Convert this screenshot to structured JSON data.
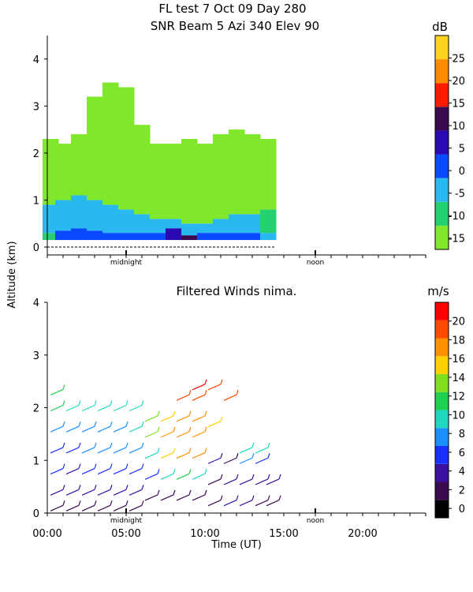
{
  "header": {
    "title_line1": "FL test   7 Oct 09 Day 280",
    "title_line2": "SNR Beam 5 Azi 340 Elev 90"
  },
  "shared_axes": {
    "ylabel": "Altitude (km)",
    "xlabel": "Time (UT)",
    "x_tick_labels": [
      "00:00",
      "05:00",
      "10:00",
      "15:00",
      "20:00"
    ],
    "x_ticks_hours": [
      0,
      5,
      10,
      15,
      20
    ],
    "xlim_hours": [
      0,
      24
    ],
    "marker_labels": [
      "midnight",
      "noon"
    ],
    "marker_hours": [
      5,
      17
    ]
  },
  "colors": {
    "snr_palette": [
      "#7fe82a",
      "#24d070",
      "#2ab8f0",
      "#0a4aff",
      "#2a0ab0",
      "#3a0a50",
      "#ff1a00",
      "#ff8c00",
      "#ffd21f"
    ],
    "wind_palette": [
      "#000000",
      "#3a0a50",
      "#3a10a0",
      "#1a30ff",
      "#1a90ff",
      "#20d8c0",
      "#20d050",
      "#80e020",
      "#ffd000",
      "#ff9000",
      "#ff4a00",
      "#ff0000"
    ]
  },
  "chart_data": [
    {
      "type": "heatmap",
      "title": "SNR Beam 5 Azi 340 Elev 90",
      "xlabel": "",
      "ylabel": "Altitude (km)",
      "ylim": [
        0,
        4.5
      ],
      "y_ticks": [
        0,
        1,
        2,
        3,
        4
      ],
      "colorbar": {
        "unit": "dB",
        "ticks": [
          "-15",
          "-10",
          "-5",
          "0",
          "5",
          "10",
          "15",
          "20",
          "25"
        ],
        "tick_values": [
          -15,
          -10,
          -5,
          0,
          5,
          10,
          15,
          20,
          25
        ],
        "range": [
          -17.5,
          30
        ]
      },
      "time_range_hours": [
        0,
        14.4
      ],
      "columns": [
        {
          "t": 0.2,
          "top": 2.3,
          "bands": [
            [
              0.15,
              0.3,
              1
            ],
            [
              0.3,
              0.9,
              2
            ],
            [
              0.9,
              2.3,
              0
            ]
          ]
        },
        {
          "t": 1.0,
          "top": 2.2,
          "bands": [
            [
              0.15,
              0.35,
              3
            ],
            [
              0.35,
              1.0,
              2
            ],
            [
              1.0,
              2.2,
              0
            ]
          ]
        },
        {
          "t": 2.0,
          "top": 2.4,
          "bands": [
            [
              0.15,
              0.4,
              3
            ],
            [
              0.4,
              1.1,
              2
            ],
            [
              1.1,
              2.4,
              0
            ]
          ]
        },
        {
          "t": 3.0,
          "top": 3.2,
          "bands": [
            [
              0.15,
              0.35,
              3
            ],
            [
              0.35,
              1.0,
              2
            ],
            [
              1.0,
              3.2,
              0
            ]
          ]
        },
        {
          "t": 4.0,
          "top": 3.5,
          "bands": [
            [
              0.15,
              0.3,
              3
            ],
            [
              0.3,
              0.9,
              2
            ],
            [
              0.9,
              3.5,
              0
            ]
          ]
        },
        {
          "t": 5.0,
          "top": 3.4,
          "bands": [
            [
              0.15,
              0.3,
              3
            ],
            [
              0.3,
              0.8,
              2
            ],
            [
              0.8,
              3.4,
              0
            ]
          ]
        },
        {
          "t": 6.0,
          "top": 2.6,
          "bands": [
            [
              0.15,
              0.3,
              3
            ],
            [
              0.3,
              0.7,
              2
            ],
            [
              0.7,
              2.6,
              0
            ]
          ]
        },
        {
          "t": 7.0,
          "top": 2.2,
          "bands": [
            [
              0.15,
              0.3,
              3
            ],
            [
              0.3,
              0.6,
              2
            ],
            [
              0.6,
              2.2,
              0
            ]
          ]
        },
        {
          "t": 8.0,
          "top": 2.2,
          "bands": [
            [
              0.15,
              0.4,
              4
            ],
            [
              0.4,
              0.6,
              2
            ],
            [
              0.6,
              2.2,
              0
            ]
          ]
        },
        {
          "t": 9.0,
          "top": 2.3,
          "bands": [
            [
              0.15,
              0.25,
              5
            ],
            [
              0.25,
              0.5,
              2
            ],
            [
              0.5,
              2.3,
              0
            ]
          ]
        },
        {
          "t": 10.0,
          "top": 2.2,
          "bands": [
            [
              0.15,
              0.3,
              3
            ],
            [
              0.3,
              0.5,
              2
            ],
            [
              0.5,
              2.2,
              0
            ]
          ]
        },
        {
          "t": 11.0,
          "top": 2.4,
          "bands": [
            [
              0.15,
              0.3,
              3
            ],
            [
              0.3,
              0.6,
              2
            ],
            [
              0.6,
              2.4,
              0
            ]
          ]
        },
        {
          "t": 12.0,
          "top": 2.5,
          "bands": [
            [
              0.15,
              0.3,
              3
            ],
            [
              0.3,
              0.7,
              2
            ],
            [
              0.7,
              2.5,
              0
            ]
          ]
        },
        {
          "t": 13.0,
          "top": 2.4,
          "bands": [
            [
              0.15,
              0.3,
              3
            ],
            [
              0.3,
              0.7,
              2
            ],
            [
              0.7,
              2.4,
              0
            ]
          ]
        },
        {
          "t": 14.0,
          "top": 2.3,
          "bands": [
            [
              0.15,
              0.3,
              2
            ],
            [
              0.3,
              0.8,
              1
            ],
            [
              0.8,
              2.3,
              0
            ]
          ]
        }
      ]
    },
    {
      "type": "scatter",
      "title": "Filtered Winds nima.",
      "xlabel": "Time (UT)",
      "ylabel": "Altitude (km)",
      "ylim": [
        0,
        4
      ],
      "y_ticks": [
        0,
        1,
        2,
        3,
        4
      ],
      "colorbar": {
        "unit": "m/s",
        "ticks": [
          "0",
          "2",
          "4",
          "6",
          "8",
          "10",
          "12",
          "14",
          "16",
          "18",
          "20"
        ],
        "tick_values": [
          0,
          2,
          4,
          6,
          8,
          10,
          12,
          14,
          16,
          18,
          20
        ],
        "range": [
          -1,
          22
        ]
      },
      "time_range_hours": [
        0,
        14.5
      ],
      "columns": [
        {
          "t": 0.5,
          "profile": [
            [
              0.1,
              2
            ],
            [
              0.4,
              3
            ],
            [
              0.8,
              5
            ],
            [
              1.2,
              6
            ],
            [
              1.6,
              8
            ],
            [
              2.0,
              11
            ],
            [
              2.3,
              12
            ]
          ]
        },
        {
          "t": 1.5,
          "profile": [
            [
              0.1,
              2
            ],
            [
              0.4,
              3
            ],
            [
              0.8,
              4
            ],
            [
              1.2,
              6
            ],
            [
              1.6,
              8
            ],
            [
              2.0,
              10
            ]
          ]
        },
        {
          "t": 2.5,
          "profile": [
            [
              0.1,
              2
            ],
            [
              0.4,
              3
            ],
            [
              0.8,
              5
            ],
            [
              1.2,
              7
            ],
            [
              1.6,
              8
            ],
            [
              2.0,
              9
            ]
          ]
        },
        {
          "t": 3.5,
          "profile": [
            [
              0.1,
              2
            ],
            [
              0.4,
              3
            ],
            [
              0.8,
              5
            ],
            [
              1.2,
              7
            ],
            [
              1.6,
              8
            ],
            [
              2.0,
              9
            ]
          ]
        },
        {
          "t": 4.5,
          "profile": [
            [
              0.1,
              2
            ],
            [
              0.4,
              3
            ],
            [
              0.8,
              6
            ],
            [
              1.2,
              7
            ],
            [
              1.6,
              8
            ],
            [
              2.0,
              9
            ]
          ]
        },
        {
          "t": 5.5,
          "profile": [
            [
              0.1,
              2
            ],
            [
              0.4,
              3
            ],
            [
              0.8,
              6
            ],
            [
              1.2,
              8
            ],
            [
              1.6,
              9
            ],
            [
              2.0,
              10
            ]
          ]
        },
        {
          "t": 6.5,
          "profile": [
            [
              0.3,
              2
            ],
            [
              0.7,
              5
            ],
            [
              1.1,
              9
            ],
            [
              1.5,
              13
            ],
            [
              1.8,
              14
            ]
          ]
        },
        {
          "t": 7.5,
          "profile": [
            [
              0.3,
              2
            ],
            [
              0.7,
              10
            ],
            [
              1.1,
              16
            ],
            [
              1.5,
              17
            ],
            [
              1.8,
              15
            ]
          ]
        },
        {
          "t": 8.5,
          "profile": [
            [
              0.3,
              2
            ],
            [
              0.7,
              11
            ],
            [
              1.1,
              17
            ],
            [
              1.5,
              18
            ],
            [
              1.8,
              17
            ],
            [
              2.2,
              20
            ]
          ]
        },
        {
          "t": 9.5,
          "profile": [
            [
              0.3,
              1
            ],
            [
              0.7,
              9
            ],
            [
              1.1,
              17
            ],
            [
              1.5,
              18
            ],
            [
              1.8,
              18
            ],
            [
              2.2,
              20
            ],
            [
              2.4,
              21
            ]
          ]
        },
        {
          "t": 10.5,
          "profile": [
            [
              0.2,
              1
            ],
            [
              0.6,
              2
            ],
            [
              1.0,
              3
            ],
            [
              1.7,
              15
            ],
            [
              2.4,
              20
            ]
          ]
        },
        {
          "t": 11.5,
          "profile": [
            [
              0.2,
              3
            ],
            [
              0.6,
              4
            ],
            [
              1.0,
              2
            ],
            [
              2.2,
              20
            ]
          ]
        },
        {
          "t": 12.5,
          "profile": [
            [
              0.2,
              4
            ],
            [
              0.6,
              3
            ],
            [
              1.0,
              7
            ],
            [
              1.2,
              9
            ]
          ]
        },
        {
          "t": 13.5,
          "profile": [
            [
              0.2,
              2
            ],
            [
              0.6,
              4
            ],
            [
              1.0,
              6
            ],
            [
              1.2,
              9
            ]
          ]
        },
        {
          "t": 14.2,
          "profile": [
            [
              0.2,
              2
            ],
            [
              0.6,
              3
            ]
          ]
        }
      ]
    }
  ]
}
